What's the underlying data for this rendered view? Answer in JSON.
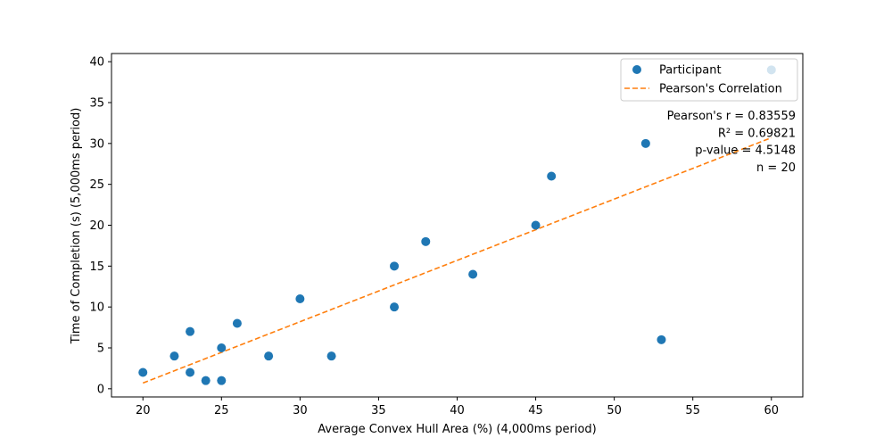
{
  "chart_data": {
    "type": "scatter",
    "xlabel": "Average Convex Hull Area (%) (4,000ms period)",
    "ylabel": "Time of Completion (s) (5,000ms period)",
    "xlim": [
      18,
      62
    ],
    "ylim": [
      -1,
      41
    ],
    "x_ticks": [
      20,
      25,
      30,
      35,
      40,
      45,
      50,
      55,
      60
    ],
    "y_ticks": [
      0,
      5,
      10,
      15,
      20,
      25,
      30,
      35,
      40
    ],
    "grid": false,
    "legend_position": "top-right",
    "series": [
      {
        "name": "Participant",
        "kind": "scatter",
        "color": "#1f77b4",
        "points": [
          {
            "x": 20,
            "y": 2
          },
          {
            "x": 22,
            "y": 4
          },
          {
            "x": 23,
            "y": 7
          },
          {
            "x": 23,
            "y": 2
          },
          {
            "x": 24,
            "y": 1
          },
          {
            "x": 25,
            "y": 5
          },
          {
            "x": 25,
            "y": 1
          },
          {
            "x": 26,
            "y": 8
          },
          {
            "x": 28,
            "y": 4
          },
          {
            "x": 30,
            "y": 11
          },
          {
            "x": 32,
            "y": 4
          },
          {
            "x": 36,
            "y": 15
          },
          {
            "x": 36,
            "y": 10
          },
          {
            "x": 38,
            "y": 18
          },
          {
            "x": 41,
            "y": 14
          },
          {
            "x": 45,
            "y": 20
          },
          {
            "x": 46,
            "y": 26
          },
          {
            "x": 52,
            "y": 30
          },
          {
            "x": 53,
            "y": 6
          },
          {
            "x": 60,
            "y": 39
          }
        ]
      },
      {
        "name": "Pearson's Correlation",
        "kind": "line",
        "style": "dashed",
        "color": "#ff7f0e",
        "points": [
          {
            "x": 20,
            "y": 0.7
          },
          {
            "x": 60,
            "y": 30.7
          }
        ]
      }
    ],
    "annotations": [
      "Pearson's r = 0.83559",
      "R² = 0.69821",
      "p-value = 4.5148",
      "n = 20"
    ]
  }
}
